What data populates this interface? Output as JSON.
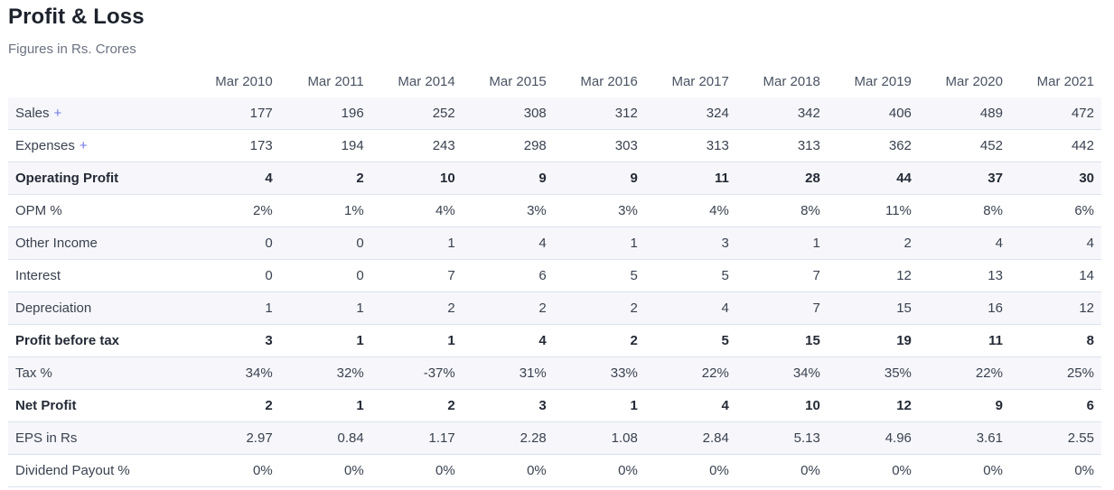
{
  "header": {
    "title": "Profit & Loss",
    "subtitle": "Figures in Rs. Crores"
  },
  "table": {
    "expand_symbol": "+",
    "columns": [
      "Mar 2010",
      "Mar 2011",
      "Mar 2014",
      "Mar 2015",
      "Mar 2016",
      "Mar 2017",
      "Mar 2018",
      "Mar 2019",
      "Mar 2020",
      "Mar 2021"
    ],
    "rows": [
      {
        "label": "Sales",
        "expandable": true,
        "bold": false,
        "values": [
          "177",
          "196",
          "252",
          "308",
          "312",
          "324",
          "342",
          "406",
          "489",
          "472"
        ]
      },
      {
        "label": "Expenses",
        "expandable": true,
        "bold": false,
        "values": [
          "173",
          "194",
          "243",
          "298",
          "303",
          "313",
          "313",
          "362",
          "452",
          "442"
        ]
      },
      {
        "label": "Operating Profit",
        "expandable": false,
        "bold": true,
        "values": [
          "4",
          "2",
          "10",
          "9",
          "9",
          "11",
          "28",
          "44",
          "37",
          "30"
        ]
      },
      {
        "label": "OPM %",
        "expandable": false,
        "bold": false,
        "values": [
          "2%",
          "1%",
          "4%",
          "3%",
          "3%",
          "4%",
          "8%",
          "11%",
          "8%",
          "6%"
        ]
      },
      {
        "label": "Other Income",
        "expandable": false,
        "bold": false,
        "values": [
          "0",
          "0",
          "1",
          "4",
          "1",
          "3",
          "1",
          "2",
          "4",
          "4"
        ]
      },
      {
        "label": "Interest",
        "expandable": false,
        "bold": false,
        "values": [
          "0",
          "0",
          "7",
          "6",
          "5",
          "5",
          "7",
          "12",
          "13",
          "14"
        ]
      },
      {
        "label": "Depreciation",
        "expandable": false,
        "bold": false,
        "values": [
          "1",
          "1",
          "2",
          "2",
          "2",
          "4",
          "7",
          "15",
          "16",
          "12"
        ]
      },
      {
        "label": "Profit before tax",
        "expandable": false,
        "bold": true,
        "values": [
          "3",
          "1",
          "1",
          "4",
          "2",
          "5",
          "15",
          "19",
          "11",
          "8"
        ]
      },
      {
        "label": "Tax %",
        "expandable": false,
        "bold": false,
        "values": [
          "34%",
          "32%",
          "-37%",
          "31%",
          "33%",
          "22%",
          "34%",
          "35%",
          "22%",
          "25%"
        ]
      },
      {
        "label": "Net Profit",
        "expandable": false,
        "bold": true,
        "values": [
          "2",
          "1",
          "2",
          "3",
          "1",
          "4",
          "10",
          "12",
          "9",
          "6"
        ]
      },
      {
        "label": "EPS in Rs",
        "expandable": false,
        "bold": false,
        "values": [
          "2.97",
          "0.84",
          "1.17",
          "2.28",
          "1.08",
          "2.84",
          "5.13",
          "4.96",
          "3.61",
          "2.55"
        ]
      },
      {
        "label": "Dividend Payout %",
        "expandable": false,
        "bold": false,
        "values": [
          "0%",
          "0%",
          "0%",
          "0%",
          "0%",
          "0%",
          "0%",
          "0%",
          "0%",
          "0%"
        ]
      }
    ]
  },
  "colors": {
    "accent": "#6e74e8",
    "stripe": "#f7f7fb",
    "border": "#dae1ee",
    "title_text": "#1d222c",
    "cell_text": "#3a4250"
  }
}
